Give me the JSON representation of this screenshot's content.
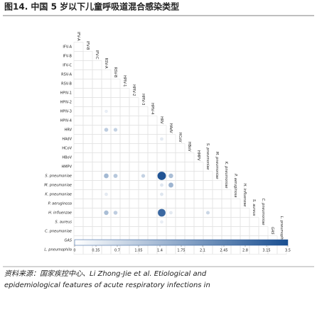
{
  "chart_data": {
    "type": "heatmap",
    "title": "图14. 中国 5 岁以下儿童呼吸道混合感染类型",
    "source": [
      "资料来源：国家疾控中心、Li Zhong-Jie et al. Etiological and",
      "epidemiological features of acute respiratory infections in"
    ],
    "categories": [
      "IFV-A",
      "IFV-B",
      "IFV-C",
      "RSV-A",
      "RSV-B",
      "HPIV-1",
      "HPIV-2",
      "HPIV-3",
      "HPIV-4",
      "HRV",
      "HAdV",
      "HCoV",
      "HBoV",
      "HMPV",
      "S. pneumoniae",
      "M. pneumoniae",
      "K. pneumoniae",
      "P. aeruginosa",
      "H. influenzae",
      "S. aureus",
      "C. pneumoniae",
      "GAS",
      "L. pneumophila"
    ],
    "cells": {
      "row": [
        "HRV",
        "HRV",
        "S. pneumoniae",
        "S. pneumoniae",
        "S. pneumoniae",
        "S. pneumoniae",
        "S. pneumoniae",
        "M. pneumoniae",
        "H. influenzae",
        "H. influenzae",
        "H. influenzae",
        "H. influenzae",
        "HPIV-3",
        "HAdV",
        "K. pneumoniae",
        "K. pneumoniae",
        "H. influenzae",
        "S. aureus",
        "M. pneumoniae"
      ],
      "col": [
        "RSV-A",
        "RSV-B",
        "RSV-A",
        "RSV-B",
        "HPIV-3",
        "HRV",
        "HAdV",
        "HAdV",
        "RSV-A",
        "RSV-B",
        "HRV",
        "S. pneumoniae",
        "RSV-A",
        "HRV",
        "RSV-A",
        "HRV",
        "HAdV",
        "HRV",
        "HRV"
      ],
      "values": [
        1.0,
        0.9,
        1.4,
        1.1,
        0.9,
        3.4,
        1.3,
        1.5,
        1.3,
        1.0,
        3.0,
        0.8,
        0.3,
        0.4,
        0.4,
        0.5,
        0.4,
        0.3,
        0.5
      ]
    },
    "colorbar": {
      "lim": [
        0,
        3.5
      ],
      "ticks": [
        0,
        0.35,
        0.7,
        1.05,
        1.4,
        1.75,
        2.1,
        2.45,
        2.8,
        3.15,
        3.5
      ],
      "colors": [
        "#ffffff",
        "#1a4f91"
      ]
    }
  }
}
